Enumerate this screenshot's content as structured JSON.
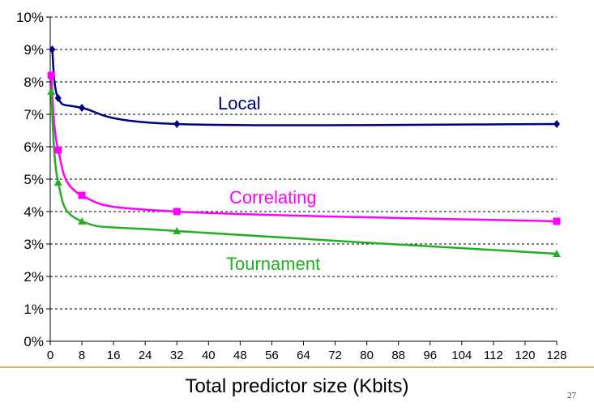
{
  "chart_data": {
    "type": "line",
    "xlabel": "Total predictor size (Kbits)",
    "ylabel": "",
    "xlim": [
      0,
      128
    ],
    "ylim": [
      0,
      10
    ],
    "xticks": [
      0,
      8,
      16,
      24,
      32,
      40,
      48,
      56,
      64,
      72,
      80,
      88,
      96,
      104,
      112,
      120,
      128
    ],
    "yticks": [
      "0%",
      "1%",
      "2%",
      "3%",
      "4%",
      "5%",
      "6%",
      "7%",
      "8%",
      "9%",
      "10%"
    ],
    "grid": "horizontal dashed",
    "series": [
      {
        "name": "Local",
        "color": "#000080",
        "marker": "diamond",
        "x": [
          0.5,
          2,
          8,
          32,
          128
        ],
        "y": [
          9.0,
          7.5,
          7.2,
          6.7,
          6.7
        ]
      },
      {
        "name": "Correlating",
        "color": "#ff00ff",
        "marker": "square",
        "x": [
          0.25,
          2,
          8,
          32,
          128
        ],
        "y": [
          8.2,
          5.9,
          4.5,
          4.0,
          3.7
        ]
      },
      {
        "name": "Tournament",
        "color": "#22b022",
        "marker": "triangle",
        "x": [
          0.25,
          2,
          8,
          32,
          128
        ],
        "y": [
          7.7,
          4.9,
          3.7,
          3.4,
          2.7
        ]
      }
    ]
  },
  "page_number": "27"
}
